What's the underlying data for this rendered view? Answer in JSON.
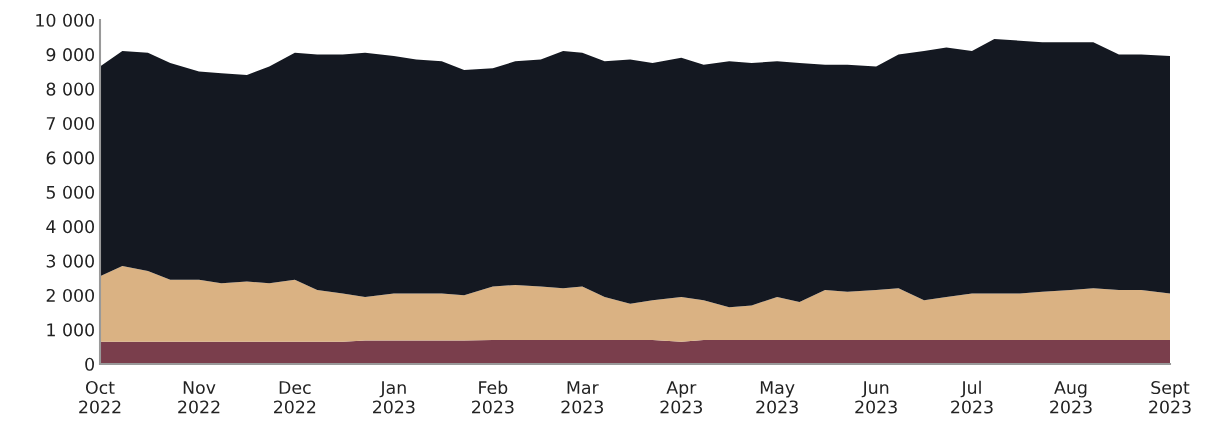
{
  "chart_data": {
    "type": "area",
    "stacked": true,
    "x": [
      "2022-10-01",
      "2022-10-08",
      "2022-10-16",
      "2022-10-23",
      "2022-11-01",
      "2022-11-08",
      "2022-11-16",
      "2022-11-23",
      "2022-12-01",
      "2022-12-08",
      "2022-12-16",
      "2022-12-23",
      "2023-01-01",
      "2023-01-08",
      "2023-01-16",
      "2023-01-23",
      "2023-02-01",
      "2023-02-08",
      "2023-02-16",
      "2023-02-23",
      "2023-03-01",
      "2023-03-08",
      "2023-03-16",
      "2023-03-23",
      "2023-04-01",
      "2023-04-08",
      "2023-04-16",
      "2023-04-23",
      "2023-05-01",
      "2023-05-08",
      "2023-05-16",
      "2023-05-23",
      "2023-06-01",
      "2023-06-08",
      "2023-06-16",
      "2023-06-23",
      "2023-07-01",
      "2023-07-08",
      "2023-07-16",
      "2023-07-23",
      "2023-08-01",
      "2023-08-08",
      "2023-08-16",
      "2023-08-23",
      "2023-09-01"
    ],
    "series": [
      {
        "color": "#7a3e4c",
        "values": [
          650,
          650,
          650,
          650,
          650,
          650,
          650,
          650,
          650,
          650,
          650,
          680,
          680,
          680,
          680,
          680,
          700,
          700,
          700,
          700,
          700,
          700,
          700,
          700,
          650,
          700,
          700,
          700,
          700,
          700,
          700,
          700,
          700,
          700,
          700,
          700,
          700,
          700,
          700,
          700,
          700,
          700,
          700,
          700,
          700
        ]
      },
      {
        "color": "#dab283",
        "values": [
          1900,
          2200,
          2050,
          1800,
          1800,
          1700,
          1750,
          1700,
          1800,
          1500,
          1400,
          1270,
          1370,
          1370,
          1370,
          1320,
          1550,
          1600,
          1550,
          1500,
          1550,
          1250,
          1050,
          1150,
          1300,
          1150,
          950,
          1000,
          1250,
          1100,
          1450,
          1400,
          1450,
          1500,
          1150,
          1250,
          1350,
          1350,
          1350,
          1400,
          1450,
          1500,
          1450,
          1450,
          1350
        ]
      },
      {
        "color": "#141821",
        "values": [
          6100,
          6250,
          6350,
          6300,
          6050,
          6100,
          6000,
          6300,
          6600,
          6850,
          6950,
          7100,
          6900,
          6800,
          6750,
          6550,
          6350,
          6500,
          6600,
          6900,
          6800,
          6850,
          7100,
          6900,
          6950,
          6850,
          7150,
          7050,
          6850,
          6950,
          6550,
          6600,
          6500,
          6800,
          7250,
          7250,
          7050,
          7400,
          7350,
          7250,
          7200,
          7150,
          6850,
          6850,
          6900
        ]
      }
    ],
    "xlim": [
      "2022-10-01",
      "2023-09-01"
    ],
    "xticks": [
      {
        "value": "2022-10-01",
        "label": "Oct\n2022"
      },
      {
        "value": "2022-11-01",
        "label": "Nov\n2022"
      },
      {
        "value": "2022-12-01",
        "label": "Dec\n2022"
      },
      {
        "value": "2023-01-01",
        "label": "Jan\n2023"
      },
      {
        "value": "2023-02-01",
        "label": "Feb\n2023"
      },
      {
        "value": "2023-03-01",
        "label": "Mar\n2023"
      },
      {
        "value": "2023-04-01",
        "label": "Apr\n2023"
      },
      {
        "value": "2023-05-01",
        "label": "May\n2023"
      },
      {
        "value": "2023-06-01",
        "label": "Jun\n2023"
      },
      {
        "value": "2023-07-01",
        "label": "Jul\n2023"
      },
      {
        "value": "2023-08-01",
        "label": "Aug\n2023"
      },
      {
        "value": "2023-09-01",
        "label": "Sept\n2023"
      }
    ],
    "ylim": [
      0,
      10000
    ],
    "yticks": [
      0,
      {
        "value": 1000,
        "label": "1 000"
      },
      {
        "value": 2000,
        "label": "2 000"
      },
      {
        "value": 3000,
        "label": "3 000"
      },
      {
        "value": 4000,
        "label": "4 000"
      },
      {
        "value": 5000,
        "label": "5 000"
      },
      {
        "value": 6000,
        "label": "6 000"
      },
      {
        "value": 7000,
        "label": "7 000"
      },
      {
        "value": 8000,
        "label": "8 000"
      },
      {
        "value": 9000,
        "label": "9 000"
      },
      {
        "value": 10000,
        "label": "10 000"
      }
    ],
    "grid": false,
    "legend": false
  }
}
